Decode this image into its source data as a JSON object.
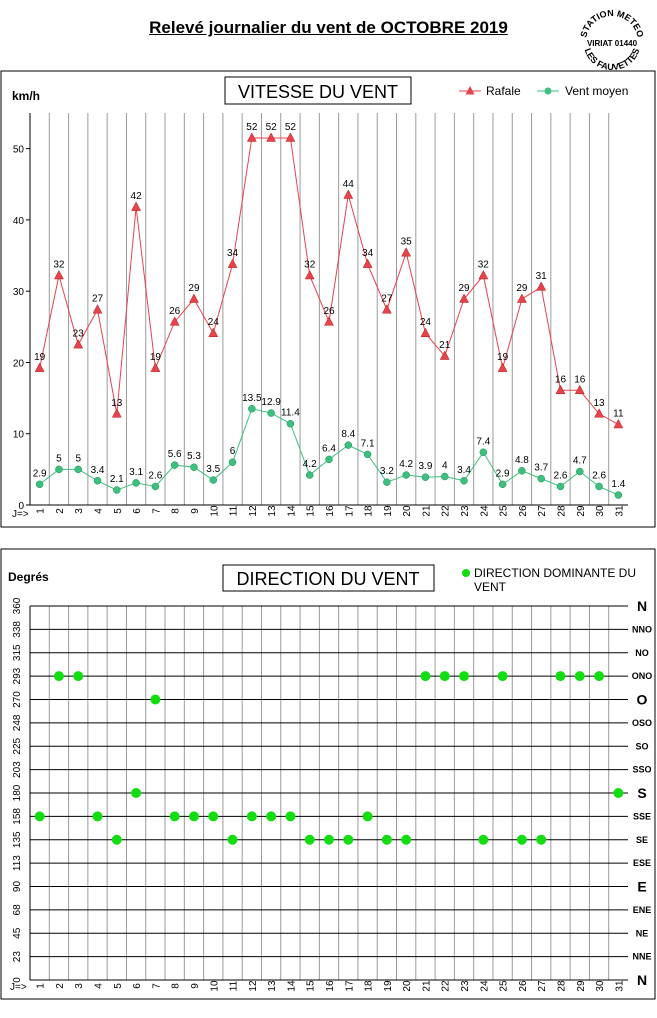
{
  "page": {
    "title": "Relevé journalier du vent de OCTOBRE 2019",
    "stamp_lines": [
      "STATION METEO",
      "VIRIAT 01440",
      "LES FAUVETTES"
    ]
  },
  "chart_data": [
    {
      "type": "line",
      "title": "VITESSE DU VENT",
      "ylabel": "km/h",
      "xlabel": "J=>",
      "ylim": [
        0,
        55
      ],
      "yticks": [
        0,
        10,
        20,
        30,
        40,
        50
      ],
      "grid": true,
      "legend_position": "top-right",
      "categories": [
        "1",
        "2",
        "3",
        "4",
        "5",
        "6",
        "7",
        "8",
        "9",
        "10",
        "11",
        "12",
        "13",
        "14",
        "15",
        "16",
        "17",
        "18",
        "19",
        "20",
        "21",
        "22",
        "23",
        "24",
        "25",
        "26",
        "27",
        "28",
        "29",
        "30",
        "31"
      ],
      "series": [
        {
          "name": "Rafale",
          "marker": "triangle",
          "color": "#e8424a",
          "values": [
            19.2,
            32.2,
            22.5,
            27.4,
            12.8,
            41.8,
            19.2,
            25.7,
            28.9,
            24.1,
            33.8,
            51.5,
            51.5,
            51.5,
            32.2,
            25.7,
            43.5,
            33.8,
            27.4,
            35.4,
            24.1,
            20.9,
            28.9,
            32.2,
            19.2,
            28.9,
            30.6,
            16.1,
            16.1,
            12.8,
            11.3
          ],
          "labels": [
            "19",
            "32",
            "23",
            "27",
            "13",
            "42",
            "19",
            "26",
            "29",
            "24",
            "34",
            "52",
            "52",
            "52",
            "32",
            "26",
            "44",
            "34",
            "27",
            "35",
            "24",
            "21",
            "29",
            "32",
            "19",
            "29",
            "31",
            "16",
            "16",
            "13",
            "11"
          ]
        },
        {
          "name": "Vent moyen",
          "marker": "circle",
          "color": "#3dbf7e",
          "values": [
            2.9,
            5,
            5,
            3.4,
            2.1,
            3.1,
            2.6,
            5.6,
            5.3,
            3.5,
            6,
            13.5,
            12.9,
            11.4,
            4.2,
            6.4,
            8.4,
            7.1,
            3.2,
            4.2,
            3.9,
            4,
            3.4,
            7.4,
            2.9,
            4.8,
            3.7,
            2.6,
            4.7,
            2.6,
            1.4
          ],
          "labels": [
            "2.9",
            "5",
            "5",
            "3.4",
            "2.1",
            "3.1",
            "2.6",
            "5.6",
            "5.3",
            "3.5",
            "6",
            "13.5",
            "12.9",
            "11.4",
            "4.2",
            "6.4",
            "8.4",
            "7.1",
            "3.2",
            "4.2",
            "3.9",
            "4",
            "3.4",
            "7.4",
            "2.9",
            "4.8",
            "3.7",
            "2.6",
            "4.7",
            "2.6",
            "1.4"
          ]
        }
      ]
    },
    {
      "type": "scatter",
      "title": "DIRECTION DU VENT",
      "ylabel": "Degrés",
      "xlabel": "J=>",
      "ylim": [
        0,
        360
      ],
      "yticks": [
        0,
        23,
        45,
        68,
        90,
        113,
        135,
        158,
        180,
        203,
        225,
        248,
        270,
        293,
        315,
        338,
        360
      ],
      "yticks_values": [
        0,
        22.5,
        45,
        67.5,
        90,
        112.5,
        135,
        157.5,
        180,
        202.5,
        225,
        247.5,
        270,
        292.5,
        315,
        337.5,
        360
      ],
      "compass_labels": [
        "N",
        "NNE",
        "NE",
        "ENE",
        "E",
        "ESE",
        "SE",
        "SSE",
        "S",
        "SSO",
        "SO",
        "OSO",
        "O",
        "ONO",
        "NO",
        "NNO",
        "N"
      ],
      "grid": true,
      "legend_position": "top-right",
      "categories": [
        "1",
        "2",
        "3",
        "4",
        "5",
        "6",
        "7",
        "8",
        "9",
        "10",
        "11",
        "12",
        "13",
        "14",
        "15",
        "16",
        "17",
        "18",
        "19",
        "20",
        "21",
        "22",
        "23",
        "24",
        "25",
        "26",
        "27",
        "28",
        "29",
        "30",
        "31"
      ],
      "series": [
        {
          "name": "DIRECTION DOMINANTE DU VENT",
          "color": "#11dd11",
          "values": [
            157.5,
            292.5,
            292.5,
            157.5,
            135,
            180,
            270,
            157.5,
            157.5,
            157.5,
            135,
            157.5,
            157.5,
            157.5,
            135,
            135,
            135,
            157.5,
            135,
            135,
            292.5,
            292.5,
            292.5,
            135,
            292.5,
            135,
            135,
            292.5,
            292.5,
            292.5,
            180
          ]
        }
      ]
    }
  ]
}
